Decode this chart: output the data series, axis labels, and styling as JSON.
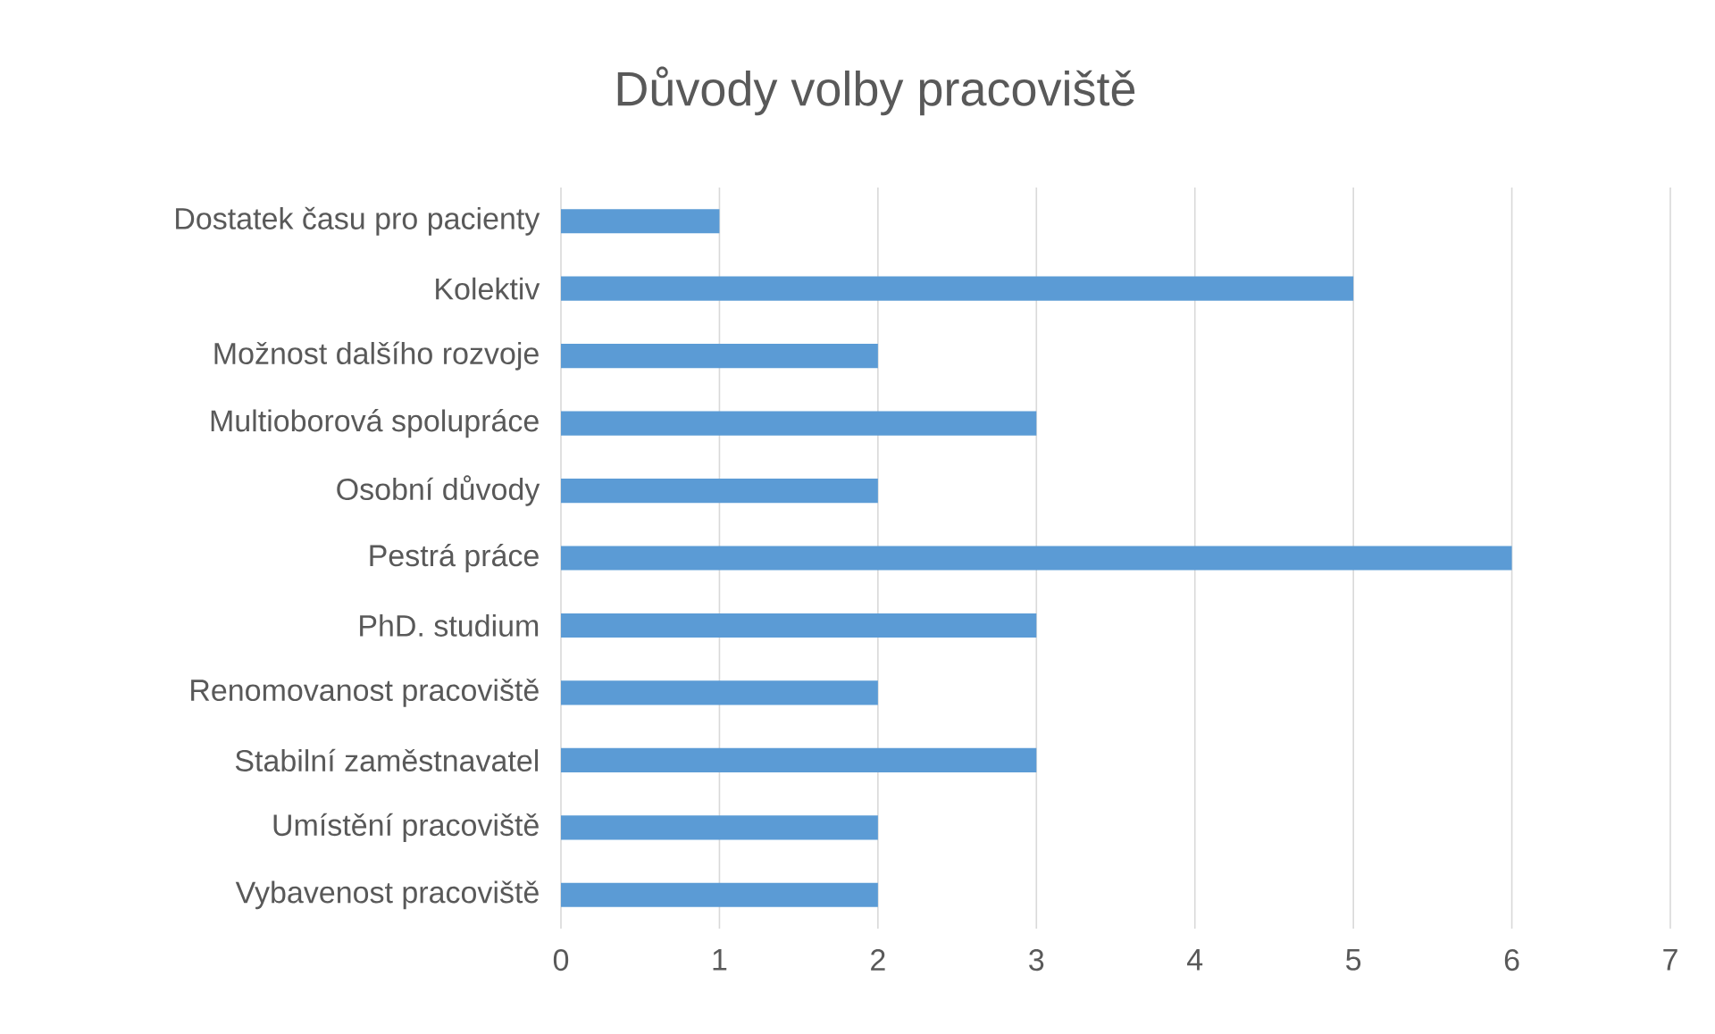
{
  "chart_data": {
    "type": "bar",
    "orientation": "horizontal",
    "title": "Důvody volby pracoviště",
    "categories": [
      "Dostatek času pro pacienty",
      "Kolektiv",
      "Možnost dalšího rozvoje",
      "Multioborová spolupráce",
      "Osobní důvody",
      "Pestrá práce",
      "PhD. studium",
      "Renomovanost pracoviště",
      "Stabilní zaměstnavatel",
      "Umístění pracoviště",
      "Vybavenost pracoviště"
    ],
    "values": [
      1,
      5,
      2,
      3,
      2,
      6,
      3,
      2,
      3,
      2,
      2
    ],
    "color": "#5b9bd5",
    "xlim": [
      0,
      7
    ],
    "xticks": [
      0,
      1,
      2,
      3,
      4,
      5,
      6,
      7
    ],
    "grid": "x"
  }
}
